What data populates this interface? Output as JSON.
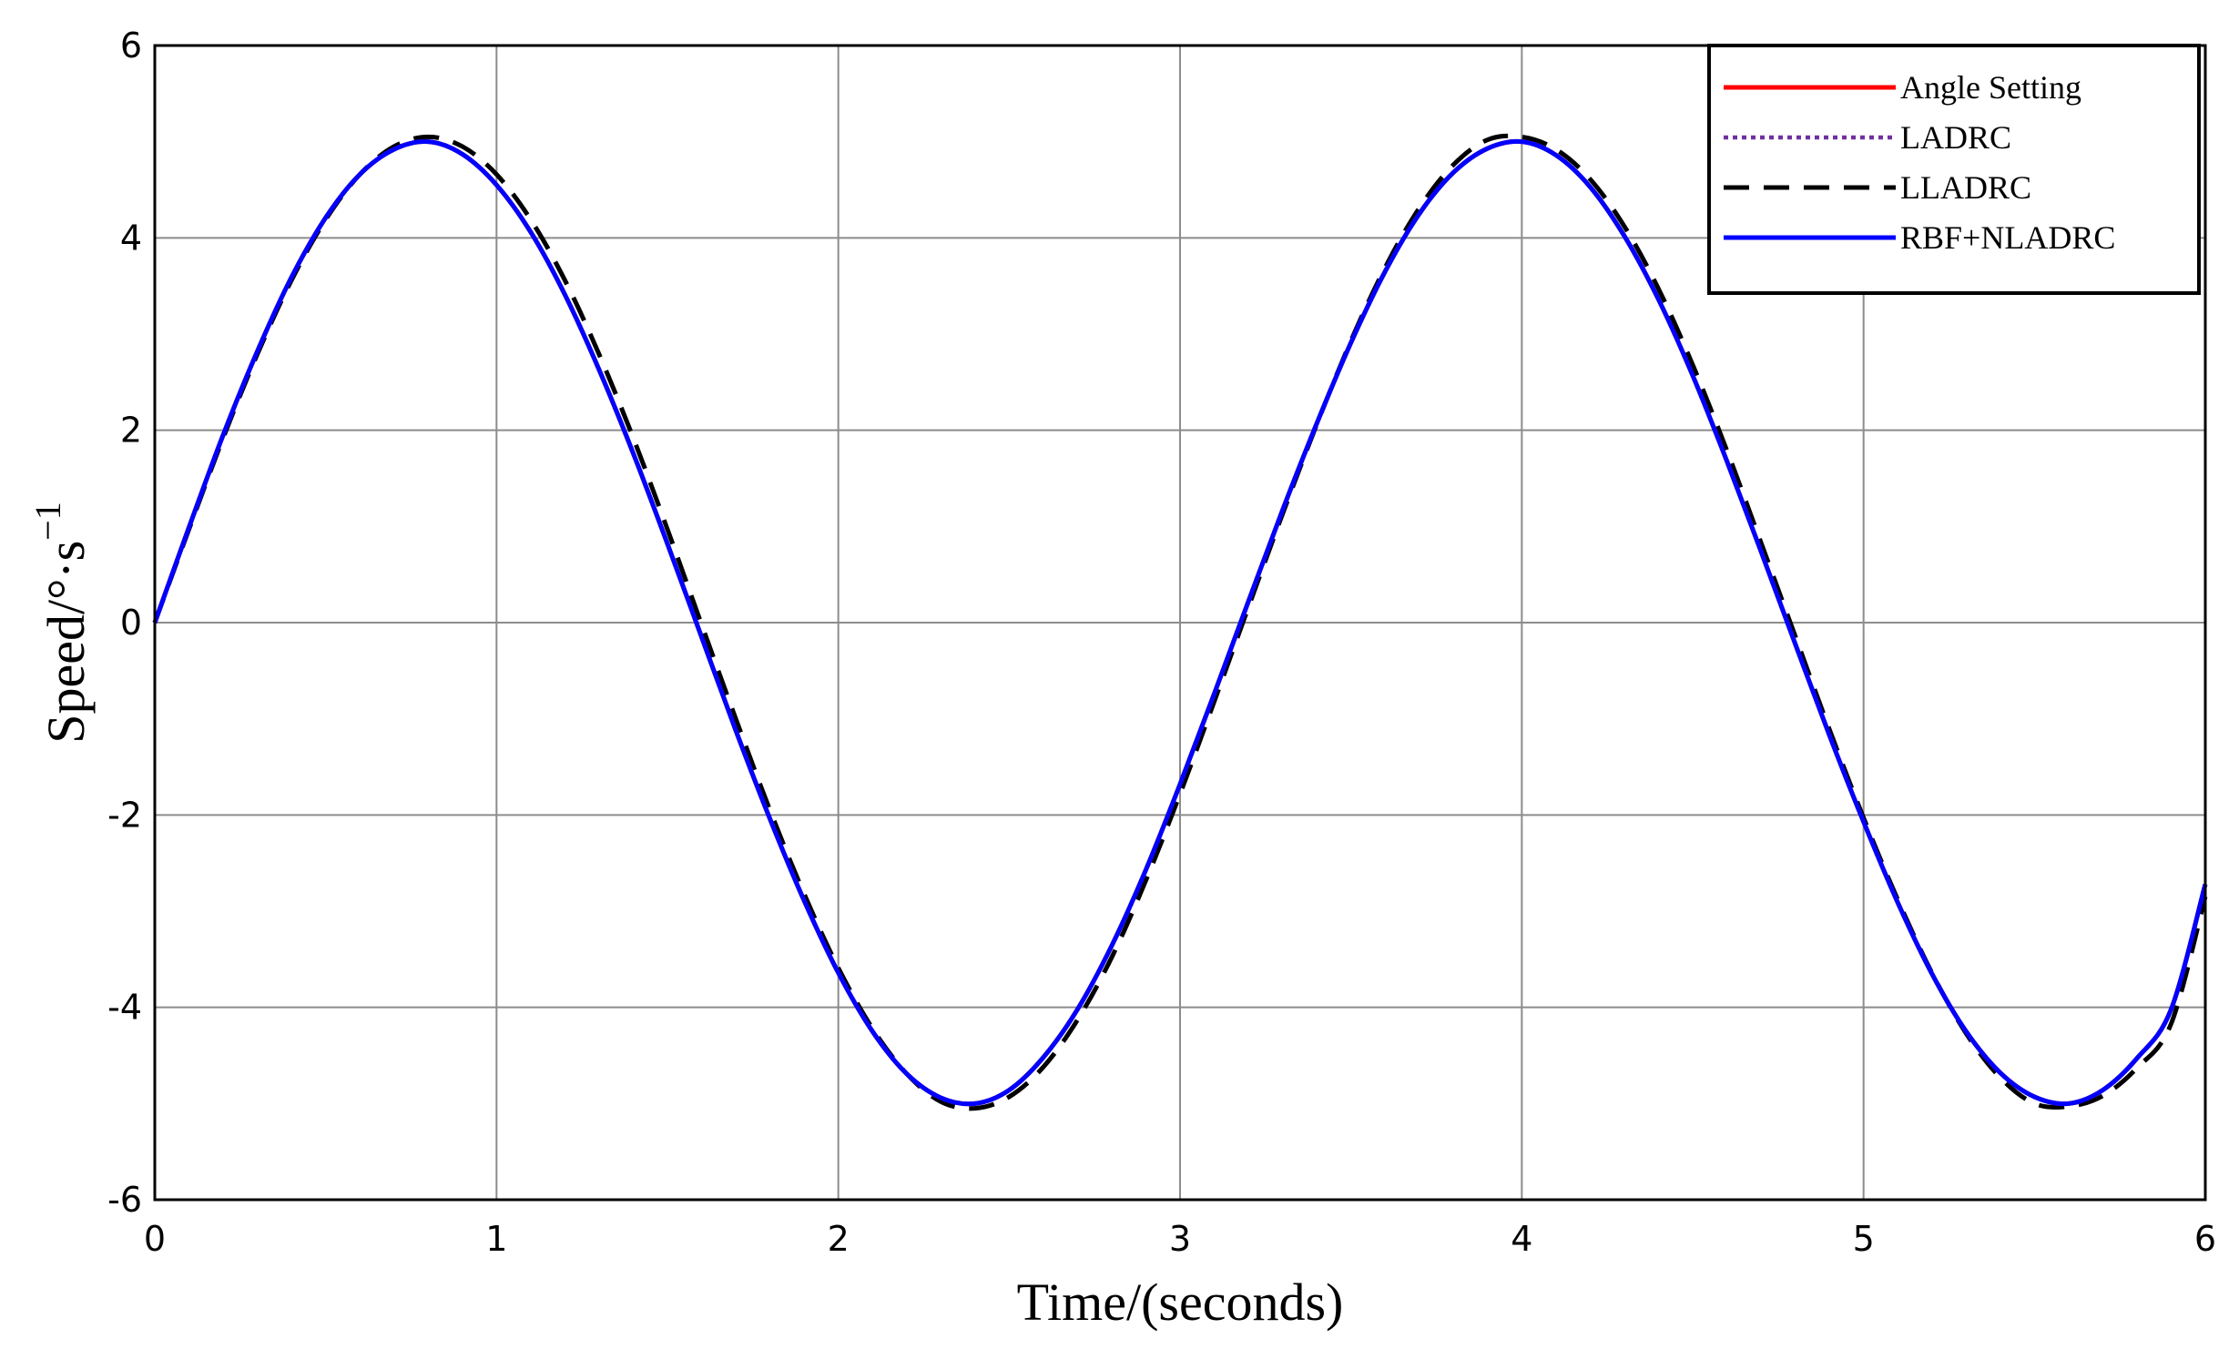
{
  "chart_data": {
    "type": "line",
    "title": "",
    "xlabel": "Time/(seconds)",
    "ylabel": "Speed/°·s",
    "ylabel_superscript": "−1",
    "xlim": [
      0,
      6
    ],
    "ylim": [
      -6,
      6
    ],
    "xticks": [
      0,
      1,
      2,
      3,
      4,
      5,
      6
    ],
    "yticks": [
      -6,
      -4,
      -2,
      0,
      2,
      4,
      6
    ],
    "xtick_labels": [
      "0",
      "1",
      "2",
      "3",
      "4",
      "5",
      "6"
    ],
    "ytick_labels": [
      "-6",
      "-4",
      "-2",
      "0",
      "2",
      "4",
      "6"
    ],
    "grid": true,
    "legend_position": "top-right",
    "x": [
      0,
      0.1,
      0.2,
      0.3,
      0.4,
      0.5,
      0.6,
      0.7,
      0.8,
      0.9,
      1.0,
      1.1,
      1.2,
      1.3,
      1.4,
      1.5,
      1.6,
      1.7,
      1.8,
      1.9,
      2.0,
      2.1,
      2.2,
      2.3,
      2.4,
      2.5,
      2.6,
      2.7,
      2.8,
      2.9,
      3.0,
      3.1,
      3.2,
      3.3,
      3.4,
      3.5,
      3.6,
      3.7,
      3.8,
      3.9,
      4.0,
      4.1,
      4.2,
      4.3,
      4.4,
      4.5,
      4.6,
      4.7,
      4.8,
      4.9,
      5.0,
      5.1,
      5.2,
      5.3,
      5.4,
      5.5,
      5.6,
      5.7,
      5.8,
      5.9,
      6.0
    ],
    "series": [
      {
        "name": "Angle Setting",
        "color": "#ff0000",
        "style": "solid",
        "values": [
          0.0,
          0.99,
          1.95,
          2.82,
          3.59,
          4.21,
          4.66,
          4.92,
          5.0,
          4.87,
          4.55,
          4.06,
          3.41,
          2.63,
          1.76,
          0.82,
          -0.15,
          -1.12,
          -2.04,
          -2.89,
          -3.64,
          -4.25,
          -4.69,
          -4.94,
          -5.0,
          -4.86,
          -4.52,
          -4.02,
          -3.36,
          -2.57,
          -1.68,
          -0.74,
          0.22,
          1.17,
          2.07,
          2.91,
          3.65,
          4.25,
          4.68,
          4.93,
          5.0,
          4.86,
          4.53,
          4.02,
          3.36,
          2.57,
          1.68,
          0.74,
          -0.22,
          -1.17,
          -2.07,
          -2.91,
          -3.65,
          -4.25,
          -4.68,
          -4.93,
          -5.0,
          -4.86,
          -4.53,
          -4.02,
          -2.72
        ]
      },
      {
        "name": "LADRC",
        "color": "#7030a0",
        "style": "dotted",
        "values": [
          0.0,
          0.99,
          1.95,
          2.82,
          3.59,
          4.21,
          4.66,
          4.92,
          5.0,
          4.87,
          4.55,
          4.06,
          3.41,
          2.63,
          1.76,
          0.82,
          -0.15,
          -1.12,
          -2.04,
          -2.89,
          -3.64,
          -4.25,
          -4.69,
          -4.94,
          -5.0,
          -4.86,
          -4.52,
          -4.02,
          -3.36,
          -2.57,
          -1.68,
          -0.74,
          0.22,
          1.17,
          2.07,
          2.91,
          3.65,
          4.25,
          4.68,
          4.93,
          5.0,
          4.86,
          4.53,
          4.02,
          3.36,
          2.57,
          1.68,
          0.74,
          -0.22,
          -1.17,
          -2.07,
          -2.91,
          -3.65,
          -4.25,
          -4.68,
          -4.93,
          -5.0,
          -4.86,
          -4.53,
          -4.02,
          -2.72
        ]
      },
      {
        "name": "LLADRC",
        "color": "#000000",
        "style": "dashed",
        "values": [
          0.0,
          0.97,
          1.92,
          2.79,
          3.56,
          4.19,
          4.66,
          4.95,
          5.05,
          4.95,
          4.66,
          4.19,
          3.56,
          2.79,
          1.92,
          0.97,
          -0.02,
          -1.0,
          -1.95,
          -2.82,
          -3.59,
          -4.22,
          -4.69,
          -4.98,
          -5.05,
          -4.93,
          -4.62,
          -4.13,
          -3.48,
          -2.68,
          -1.78,
          -0.82,
          0.16,
          1.13,
          2.06,
          2.93,
          3.69,
          4.31,
          4.76,
          5.02,
          5.05,
          4.92,
          4.61,
          4.12,
          3.47,
          2.68,
          1.79,
          0.83,
          -0.14,
          -1.11,
          -2.03,
          -2.88,
          -3.64,
          -4.27,
          -4.73,
          -5.0,
          -5.03,
          -4.92,
          -4.63,
          -4.17,
          -2.85
        ]
      },
      {
        "name": "RBF+NLADRC",
        "color": "#0000ff",
        "style": "solid",
        "values": [
          0.0,
          0.99,
          1.95,
          2.82,
          3.59,
          4.21,
          4.66,
          4.92,
          5.0,
          4.87,
          4.55,
          4.06,
          3.41,
          2.63,
          1.76,
          0.82,
          -0.15,
          -1.12,
          -2.04,
          -2.89,
          -3.64,
          -4.25,
          -4.69,
          -4.94,
          -5.0,
          -4.86,
          -4.52,
          -4.02,
          -3.36,
          -2.57,
          -1.68,
          -0.74,
          0.22,
          1.17,
          2.07,
          2.91,
          3.65,
          4.25,
          4.68,
          4.93,
          5.0,
          4.86,
          4.53,
          4.02,
          3.36,
          2.57,
          1.68,
          0.74,
          -0.22,
          -1.17,
          -2.07,
          -2.91,
          -3.65,
          -4.25,
          -4.68,
          -4.93,
          -5.0,
          -4.86,
          -4.53,
          -4.02,
          -2.72
        ]
      }
    ]
  }
}
